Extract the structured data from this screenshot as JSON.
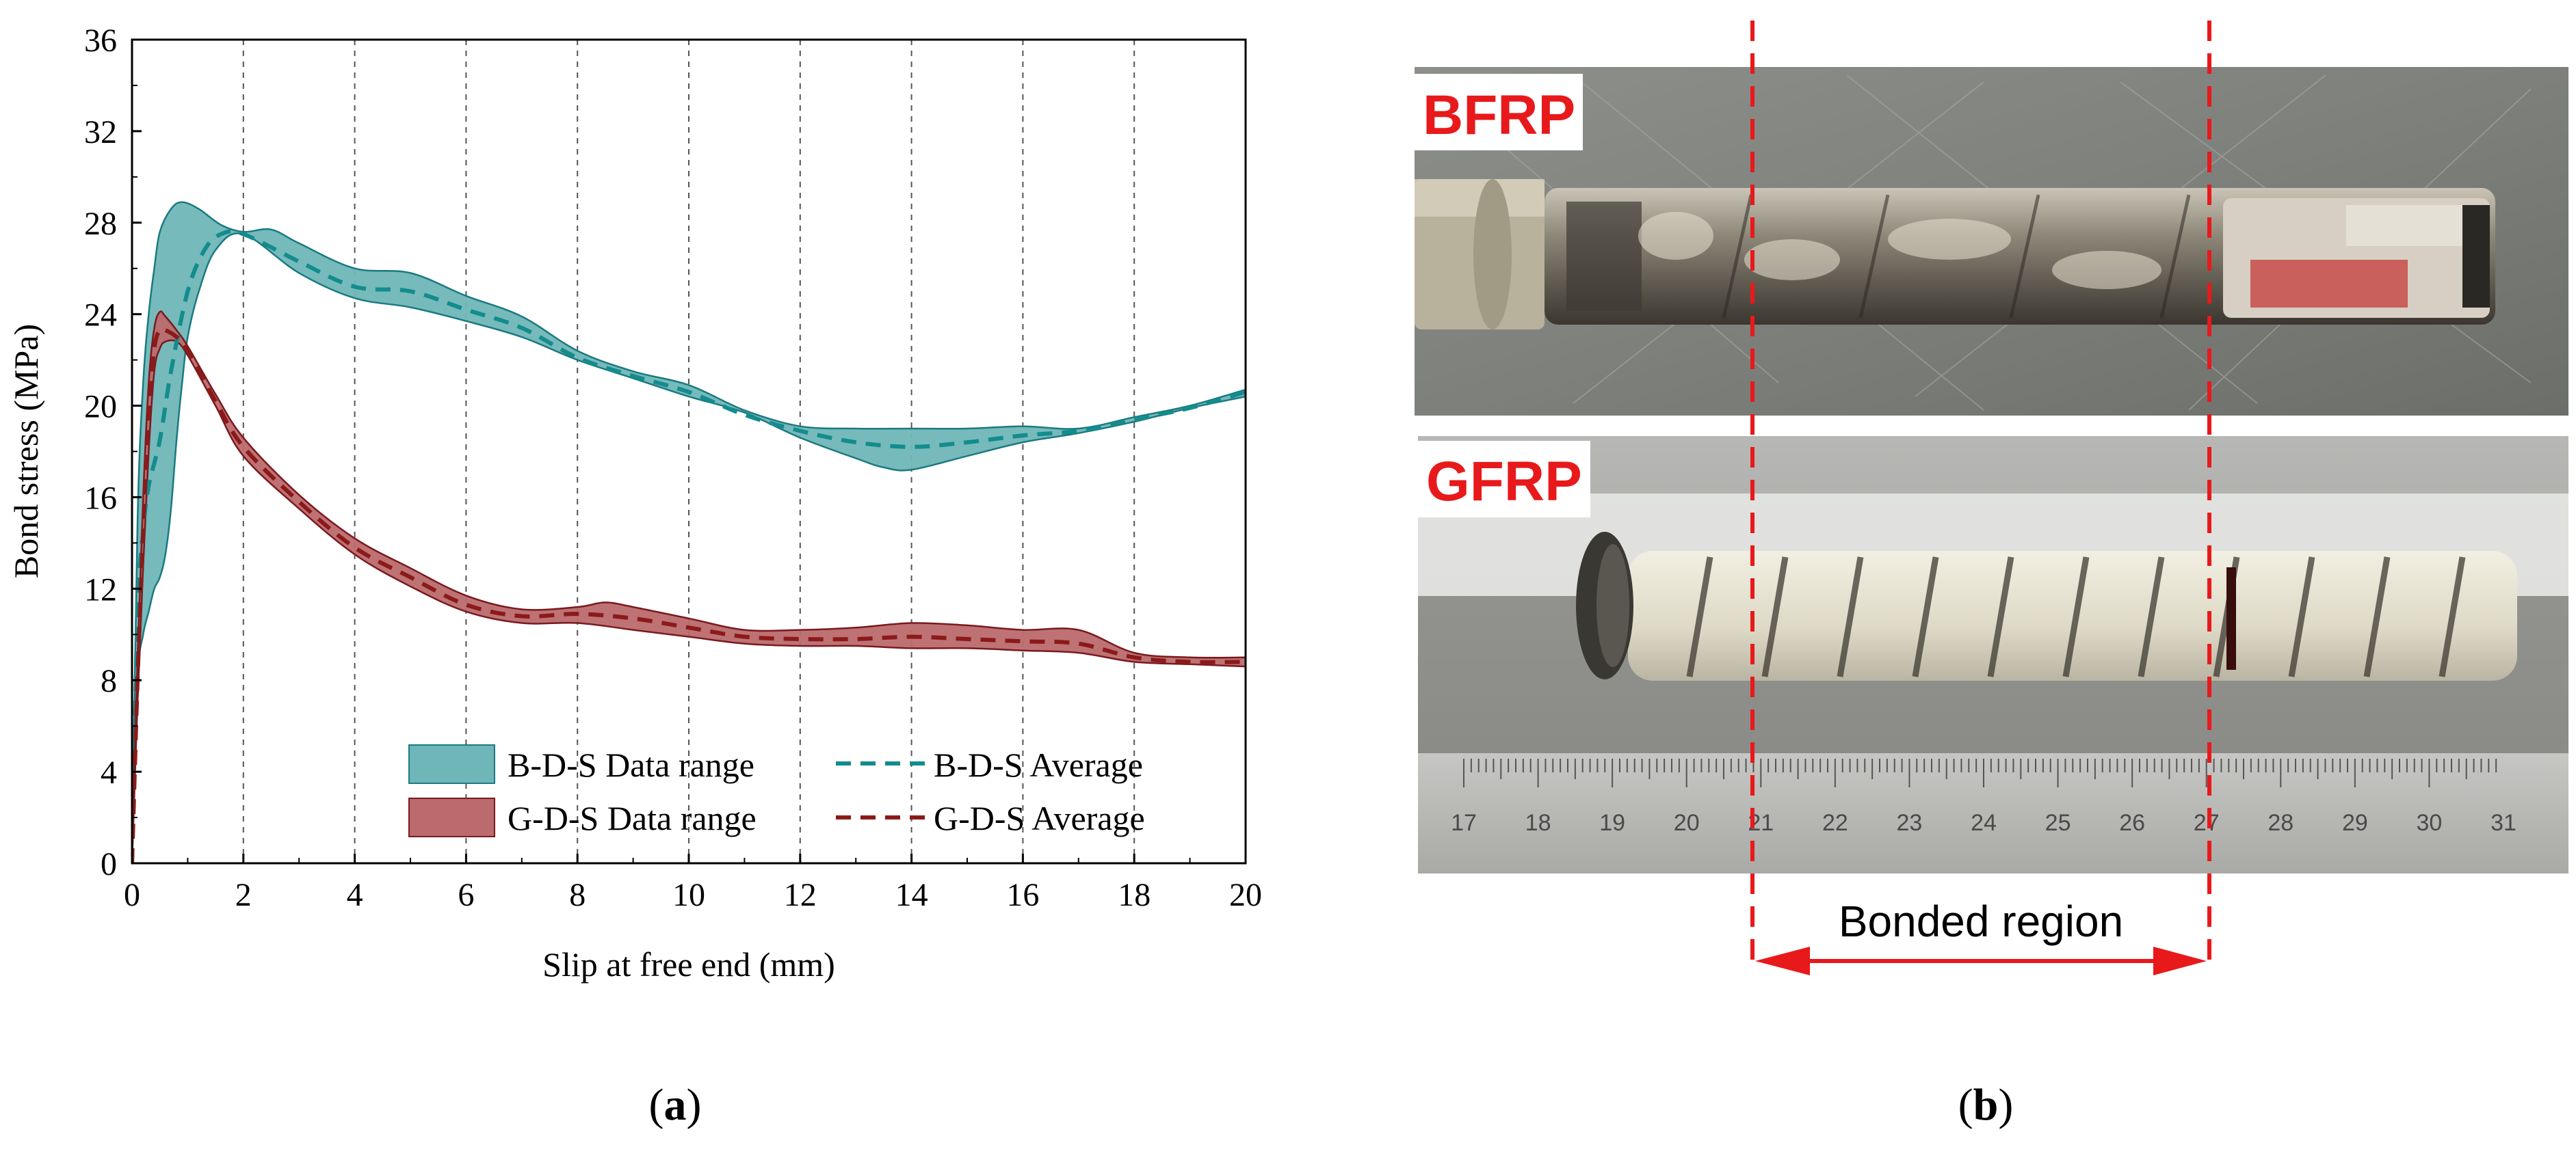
{
  "panel_a": {
    "label_open": "(",
    "label_letter": "a",
    "label_close": ")"
  },
  "panel_b": {
    "label_open": "(",
    "label_letter": "b",
    "label_close": ")",
    "bfrp_label": "BFRP",
    "gfrp_label": "GFRP",
    "bonded_region_label": "Bonded region",
    "ruler_ticks": [
      "17",
      "18",
      "19",
      "20",
      "21",
      "22",
      "23",
      "24",
      "25",
      "26",
      "27",
      "28",
      "29",
      "30",
      "31"
    ],
    "colors": {
      "annotation": "#e8191b"
    }
  },
  "chart_data": {
    "type": "line",
    "title": "",
    "xlabel": "Slip at free end (mm)",
    "ylabel": "Bond stress (MPa)",
    "xlim": [
      0,
      20
    ],
    "ylim": [
      0,
      36
    ],
    "xticks": [
      0,
      2,
      4,
      6,
      8,
      10,
      12,
      14,
      16,
      18,
      20
    ],
    "yticks": [
      0,
      4,
      8,
      12,
      16,
      20,
      24,
      28,
      32,
      36
    ],
    "grid": "vertical dashed at major x ticks",
    "legend_position": "bottom-right",
    "series": [
      {
        "name": "B-D-S Data range",
        "kind": "band",
        "color": "#6fb6b8",
        "edge": "#1a7a80",
        "upper": [
          [
            0,
            0
          ],
          [
            0.1,
            15
          ],
          [
            0.2,
            21
          ],
          [
            0.3,
            24
          ],
          [
            0.4,
            26
          ],
          [
            0.5,
            27.6
          ],
          [
            0.7,
            28.6
          ],
          [
            0.9,
            28.9
          ],
          [
            1.2,
            28.6
          ],
          [
            1.6,
            27.9
          ],
          [
            2.0,
            27.6
          ],
          [
            2.5,
            27.7
          ],
          [
            3.0,
            27.1
          ],
          [
            4.0,
            26.0
          ],
          [
            5.0,
            25.8
          ],
          [
            6.0,
            24.8
          ],
          [
            7.0,
            23.9
          ],
          [
            8.0,
            22.4
          ],
          [
            9.0,
            21.5
          ],
          [
            10.0,
            20.9
          ],
          [
            11.0,
            19.8
          ],
          [
            12.0,
            19.1
          ],
          [
            13.0,
            19.0
          ],
          [
            14.0,
            19.0
          ],
          [
            15.0,
            19.0
          ],
          [
            16.0,
            19.1
          ],
          [
            17.0,
            19.0
          ],
          [
            18.0,
            19.5
          ],
          [
            19.0,
            20.0
          ],
          [
            20.0,
            20.7
          ]
        ],
        "lower": [
          [
            0,
            0
          ],
          [
            0.1,
            8
          ],
          [
            0.2,
            10
          ],
          [
            0.3,
            11
          ],
          [
            0.4,
            12
          ],
          [
            0.5,
            12.5
          ],
          [
            0.6,
            13.5
          ],
          [
            0.7,
            15.5
          ],
          [
            0.8,
            18.5
          ],
          [
            0.9,
            21
          ],
          [
            1.0,
            23
          ],
          [
            1.2,
            25
          ],
          [
            1.5,
            26.8
          ],
          [
            2.0,
            27.5
          ],
          [
            3.0,
            25.8
          ],
          [
            4.0,
            24.7
          ],
          [
            5.0,
            24.3
          ],
          [
            6.0,
            23.7
          ],
          [
            7.0,
            23.0
          ],
          [
            8.0,
            22.0
          ],
          [
            9.0,
            21.2
          ],
          [
            10.0,
            20.4
          ],
          [
            11.0,
            19.7
          ],
          [
            12.0,
            18.6
          ],
          [
            13.0,
            17.7
          ],
          [
            13.5,
            17.3
          ],
          [
            14.0,
            17.2
          ],
          [
            15.0,
            17.8
          ],
          [
            16.0,
            18.4
          ],
          [
            17.0,
            18.8
          ],
          [
            18.0,
            19.3
          ],
          [
            19.0,
            19.9
          ],
          [
            20.0,
            20.4
          ]
        ]
      },
      {
        "name": "B-D-S Average",
        "kind": "dashed-line",
        "color": "#138c8c",
        "points": [
          [
            0,
            0
          ],
          [
            0.1,
            11
          ],
          [
            0.2,
            14.5
          ],
          [
            0.3,
            16.5
          ],
          [
            0.5,
            18.5
          ],
          [
            0.7,
            21.5
          ],
          [
            1.0,
            25
          ],
          [
            1.3,
            26.8
          ],
          [
            1.6,
            27.5
          ],
          [
            2.0,
            27.5
          ],
          [
            3.0,
            26.3
          ],
          [
            4.0,
            25.2
          ],
          [
            5.0,
            25.0
          ],
          [
            6.0,
            24.2
          ],
          [
            7.0,
            23.4
          ],
          [
            8.0,
            22.1
          ],
          [
            9.0,
            21.3
          ],
          [
            10.0,
            20.6
          ],
          [
            11.0,
            19.6
          ],
          [
            12.0,
            18.9
          ],
          [
            13.0,
            18.4
          ],
          [
            14.0,
            18.2
          ],
          [
            15.0,
            18.4
          ],
          [
            16.0,
            18.7
          ],
          [
            17.0,
            18.9
          ],
          [
            18.0,
            19.4
          ],
          [
            19.0,
            19.9
          ],
          [
            20.0,
            20.6
          ]
        ]
      },
      {
        "name": "G-D-S Data range",
        "kind": "band",
        "color": "#bb6a6d",
        "edge": "#7a1a1f",
        "upper": [
          [
            0,
            0
          ],
          [
            0.1,
            9
          ],
          [
            0.2,
            16
          ],
          [
            0.3,
            21
          ],
          [
            0.4,
            23.4
          ],
          [
            0.5,
            24.1
          ],
          [
            0.6,
            23.9
          ],
          [
            0.8,
            23.3
          ],
          [
            1.0,
            22.6
          ],
          [
            1.5,
            20.5
          ],
          [
            2.0,
            18.6
          ],
          [
            3.0,
            16.1
          ],
          [
            4.0,
            14.2
          ],
          [
            5.0,
            12.9
          ],
          [
            6.0,
            11.7
          ],
          [
            7.0,
            11.1
          ],
          [
            8.0,
            11.2
          ],
          [
            8.5,
            11.4
          ],
          [
            9.0,
            11.2
          ],
          [
            10.0,
            10.7
          ],
          [
            11.0,
            10.2
          ],
          [
            12.0,
            10.2
          ],
          [
            13.0,
            10.3
          ],
          [
            14.0,
            10.5
          ],
          [
            15.0,
            10.4
          ],
          [
            16.0,
            10.2
          ],
          [
            17.0,
            10.2
          ],
          [
            18.0,
            9.2
          ],
          [
            19.0,
            9.0
          ],
          [
            20.0,
            9.0
          ]
        ],
        "lower": [
          [
            0,
            0
          ],
          [
            0.1,
            7
          ],
          [
            0.2,
            13
          ],
          [
            0.3,
            18
          ],
          [
            0.4,
            21.5
          ],
          [
            0.5,
            22.5
          ],
          [
            0.6,
            22.8
          ],
          [
            0.8,
            22.8
          ],
          [
            1.0,
            22.2
          ],
          [
            1.5,
            20.0
          ],
          [
            2.0,
            17.8
          ],
          [
            3.0,
            15.5
          ],
          [
            4.0,
            13.5
          ],
          [
            5.0,
            12.1
          ],
          [
            6.0,
            11.0
          ],
          [
            7.0,
            10.5
          ],
          [
            8.0,
            10.5
          ],
          [
            9.0,
            10.2
          ],
          [
            10.0,
            9.9
          ],
          [
            11.0,
            9.6
          ],
          [
            12.0,
            9.5
          ],
          [
            13.0,
            9.5
          ],
          [
            14.0,
            9.4
          ],
          [
            15.0,
            9.4
          ],
          [
            16.0,
            9.3
          ],
          [
            17.0,
            9.2
          ],
          [
            18.0,
            8.8
          ],
          [
            19.0,
            8.7
          ],
          [
            20.0,
            8.6
          ]
        ]
      },
      {
        "name": "G-D-S Average",
        "kind": "dashed-line",
        "color": "#8b1a1a",
        "points": [
          [
            0,
            0
          ],
          [
            0.1,
            8
          ],
          [
            0.2,
            14.5
          ],
          [
            0.3,
            19.5
          ],
          [
            0.4,
            22.5
          ],
          [
            0.5,
            23.3
          ],
          [
            0.6,
            23.3
          ],
          [
            0.8,
            23.0
          ],
          [
            1.0,
            22.4
          ],
          [
            1.5,
            20.2
          ],
          [
            2.0,
            18.2
          ],
          [
            3.0,
            15.8
          ],
          [
            4.0,
            13.8
          ],
          [
            5.0,
            12.5
          ],
          [
            6.0,
            11.3
          ],
          [
            7.0,
            10.8
          ],
          [
            8.0,
            10.9
          ],
          [
            9.0,
            10.7
          ],
          [
            10.0,
            10.3
          ],
          [
            11.0,
            9.9
          ],
          [
            12.0,
            9.8
          ],
          [
            13.0,
            9.8
          ],
          [
            14.0,
            9.9
          ],
          [
            15.0,
            9.8
          ],
          [
            16.0,
            9.7
          ],
          [
            17.0,
            9.6
          ],
          [
            18.0,
            9.0
          ],
          [
            19.0,
            8.8
          ],
          [
            20.0,
            8.8
          ]
        ]
      }
    ]
  }
}
